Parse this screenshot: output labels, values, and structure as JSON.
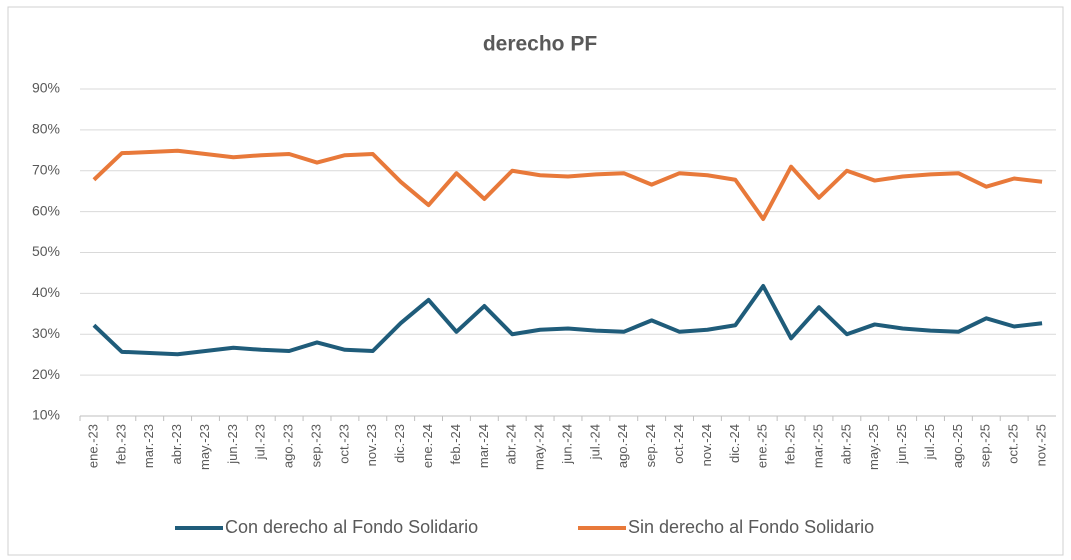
{
  "chart_data": {
    "type": "line",
    "title": "derecho PF",
    "categories": [
      "ene.-23",
      "feb.-23",
      "mar.-23",
      "abr.-23",
      "may.-23",
      "jun.-23",
      "jul.-23",
      "ago.-23",
      "sep.-23",
      "oct.-23",
      "nov.-23",
      "dic.-23",
      "ene.-24",
      "feb.-24",
      "mar.-24",
      "abr.-24",
      "may.-24",
      "jun.-24",
      "jul.-24",
      "ago.-24",
      "sep.-24",
      "oct.-24",
      "nov.-24",
      "dic.-24",
      "ene.-25",
      "feb.-25",
      "mar.-25",
      "abr.-25",
      "may.-25",
      "jun.-25",
      "jul.-25",
      "ago.-25",
      "sep.-25",
      "oct.-25",
      "nov.-25"
    ],
    "series": [
      {
        "name": "Con derecho al Fondo Solidario",
        "color": "#1f5c7a",
        "values": [
          32.2,
          25.7,
          25.4,
          25.1,
          25.9,
          26.7,
          26.2,
          25.9,
          28.0,
          26.2,
          25.9,
          32.7,
          38.4,
          30.6,
          36.9,
          30.0,
          31.1,
          31.4,
          30.9,
          30.6,
          33.4,
          30.6,
          31.1,
          32.2,
          41.8,
          29.0,
          36.6,
          30.0,
          32.4,
          31.4,
          30.9,
          30.6,
          33.9,
          31.9,
          32.7
        ]
      },
      {
        "name": "Sin derecho al Fondo Solidario",
        "color": "#e8793a",
        "values": [
          67.8,
          74.3,
          74.6,
          74.9,
          74.1,
          73.3,
          73.8,
          74.1,
          72.0,
          73.8,
          74.1,
          67.3,
          61.6,
          69.4,
          63.1,
          70.0,
          68.9,
          68.6,
          69.1,
          69.4,
          66.6,
          69.4,
          68.9,
          67.8,
          58.2,
          71.0,
          63.4,
          70.0,
          67.6,
          68.6,
          69.1,
          69.4,
          66.1,
          68.1,
          67.3
        ]
      }
    ],
    "ylim": [
      10,
      90
    ],
    "yticks": [
      {
        "value": 10,
        "label": "10%"
      },
      {
        "value": 20,
        "label": "20%"
      },
      {
        "value": 30,
        "label": "30%"
      },
      {
        "value": 40,
        "label": "40%"
      },
      {
        "value": 50,
        "label": "50%"
      },
      {
        "value": 60,
        "label": "60%"
      },
      {
        "value": 70,
        "label": "70%"
      },
      {
        "value": 80,
        "label": "80%"
      },
      {
        "value": 90,
        "label": "90%"
      }
    ],
    "grid": true,
    "legend": "bottom"
  }
}
